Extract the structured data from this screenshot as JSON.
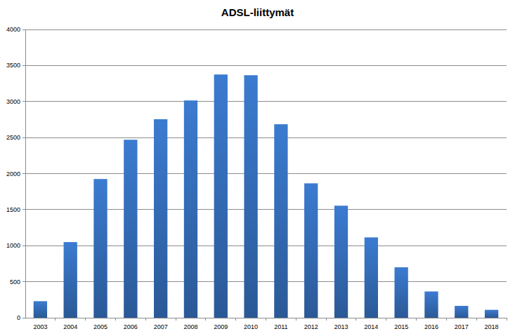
{
  "chart_data": {
    "type": "bar",
    "title": "ADSL-liittymät",
    "categories": [
      "2003",
      "2004",
      "2005",
      "2006",
      "2007",
      "2008",
      "2009",
      "2010",
      "2011",
      "2012",
      "2013",
      "2014",
      "2015",
      "2016",
      "2017",
      "2018"
    ],
    "values": [
      230,
      1050,
      1925,
      2470,
      2755,
      3015,
      3375,
      3365,
      2685,
      1865,
      1555,
      1115,
      700,
      365,
      165,
      110
    ],
    "color": "#3b7bd0",
    "ylim": [
      0,
      4000
    ],
    "yticks": [
      0,
      500,
      1000,
      1500,
      2000,
      2500,
      3000,
      3500,
      4000
    ],
    "grid": true
  }
}
